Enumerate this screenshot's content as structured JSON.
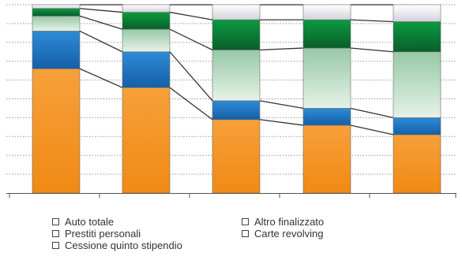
{
  "chart_data": {
    "type": "bar",
    "stacked": true,
    "percent": true,
    "categories": [
      "",
      "",
      "",
      "",
      ""
    ],
    "ylim": [
      0,
      100
    ],
    "grid": true,
    "legend_position": "bottom",
    "series": [
      {
        "name": "Auto totale",
        "color": "#f5901e",
        "values": [
          66,
          56,
          39,
          36,
          31
        ]
      },
      {
        "name": "Prestiti personali",
        "color": "#1f74c2",
        "values": [
          20,
          19,
          10,
          9,
          9
        ]
      },
      {
        "name": "Cessione quinto stipendio",
        "color": "#c8e2ce",
        "values": [
          8,
          12,
          27,
          32,
          35
        ]
      },
      {
        "name": "Altro finalizzato",
        "color": "#0f8a3e",
        "values": [
          4,
          9,
          16,
          15,
          16
        ]
      },
      {
        "name": "Carte revolving",
        "color": "#eef0f4",
        "values": [
          2,
          4,
          8,
          8,
          9
        ]
      }
    ]
  },
  "legend": {
    "col1": [
      "Auto totale",
      "Prestiti personali",
      "Cessione quinto stipendio"
    ],
    "col2": [
      "Altro finalizzato",
      "Carte revolving"
    ]
  }
}
